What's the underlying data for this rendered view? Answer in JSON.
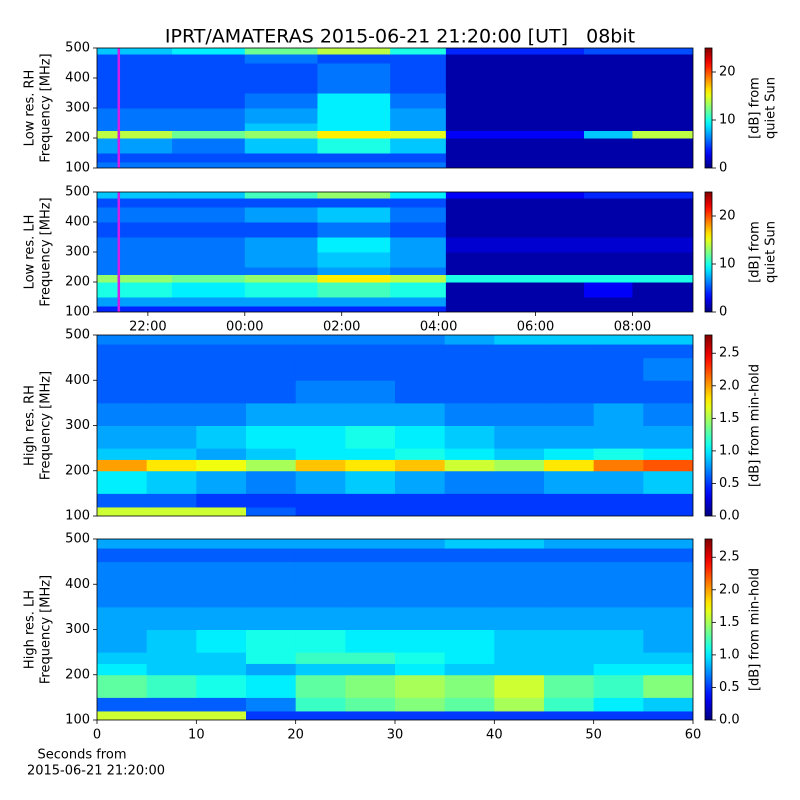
{
  "title": "IPRT/AMATERAS 2015-06-21 21:20:00 [UT]   08bit",
  "chart_data": [
    {
      "type": "heatmap",
      "ylabel": [
        "Low res. RH",
        "Frequency [MHz]"
      ],
      "clabel": [
        "[dB] from",
        "quiet Sun"
      ],
      "colormap": "jet",
      "xlim": [
        20.95,
        33.25
      ],
      "ylim": [
        100,
        500
      ],
      "yticks": [
        100,
        200,
        300,
        400,
        500
      ],
      "clim": [
        0,
        25
      ],
      "cticks": [
        0,
        10,
        20
      ],
      "marker_x": 21.4,
      "marker_color": "#d21ee6",
      "xbins": [
        20.95,
        22.5,
        24,
        25.5,
        27,
        28.15,
        29.5,
        31,
        32,
        33.25
      ],
      "ybins": [
        100,
        120,
        150,
        200,
        225,
        250,
        300,
        350,
        400,
        450,
        480,
        500
      ],
      "z": [
        [
          6,
          6,
          6,
          6,
          6,
          1,
          1,
          1,
          1
        ],
        [
          5,
          5,
          5,
          5,
          5,
          1,
          1,
          1,
          1
        ],
        [
          7,
          6,
          8,
          10,
          8,
          1,
          1,
          1,
          1
        ],
        [
          14,
          12,
          13,
          16,
          15,
          3,
          3,
          8,
          14
        ],
        [
          6,
          6,
          8,
          9,
          7,
          1,
          1,
          1,
          1
        ],
        [
          6,
          6,
          7,
          9,
          7,
          1,
          1,
          1,
          1
        ],
        [
          5,
          5,
          6,
          9,
          6,
          1,
          1,
          1,
          1
        ],
        [
          5,
          5,
          5,
          6,
          5,
          1,
          1,
          1,
          1
        ],
        [
          5,
          5,
          5,
          6,
          5,
          1,
          1,
          1,
          1
        ],
        [
          5,
          5,
          6,
          5,
          5,
          1,
          1,
          1,
          1
        ],
        [
          8,
          9,
          12,
          14,
          10,
          4,
          4,
          5,
          5
        ]
      ]
    },
    {
      "type": "heatmap",
      "ylabel": [
        "Low res. LH",
        "Frequency [MHz]"
      ],
      "clabel": [
        "[dB] from",
        "quiet Sun"
      ],
      "colormap": "jet",
      "xlim": [
        20.95,
        33.25
      ],
      "xticks": [
        {
          "value": 22,
          "label": "22:00"
        },
        {
          "value": 24,
          "label": "00:00"
        },
        {
          "value": 26,
          "label": "02:00"
        },
        {
          "value": 28,
          "label": "04:00"
        },
        {
          "value": 30,
          "label": "06:00"
        },
        {
          "value": 32,
          "label": "08:00"
        }
      ],
      "ylim": [
        100,
        500
      ],
      "yticks": [
        100,
        200,
        300,
        400,
        500
      ],
      "clim": [
        0,
        25
      ],
      "cticks": [
        0,
        10,
        20
      ],
      "marker_x": 21.4,
      "marker_color": "#d21ee6",
      "xbins": [
        20.95,
        22.5,
        24,
        25.5,
        27,
        28.15,
        29.5,
        31,
        32,
        33.25
      ],
      "ybins": [
        100,
        120,
        150,
        200,
        225,
        250,
        300,
        350,
        400,
        450,
        480,
        500
      ],
      "z": [
        [
          4,
          4,
          4,
          4,
          4,
          1,
          1,
          1,
          1
        ],
        [
          7,
          7,
          7,
          7,
          7,
          1,
          1,
          1,
          1
        ],
        [
          10,
          9,
          10,
          11,
          10,
          1,
          1,
          3,
          1
        ],
        [
          13,
          12,
          13,
          16,
          14,
          10,
          10,
          10,
          10
        ],
        [
          6,
          6,
          6,
          7,
          6,
          1,
          1,
          1,
          1
        ],
        [
          6,
          6,
          7,
          8,
          7,
          1,
          1,
          1,
          1
        ],
        [
          6,
          6,
          7,
          9,
          7,
          2,
          2,
          2,
          2
        ],
        [
          5,
          5,
          5,
          6,
          5,
          1,
          1,
          1,
          1
        ],
        [
          6,
          6,
          7,
          8,
          6,
          1,
          1,
          1,
          1
        ],
        [
          5,
          5,
          5,
          5,
          5,
          1,
          1,
          1,
          1
        ],
        [
          8,
          8,
          11,
          13,
          9,
          3,
          3,
          4,
          4
        ]
      ]
    },
    {
      "type": "heatmap",
      "ylabel": [
        "High res. RH",
        "Frequency [MHz]"
      ],
      "clabel": [
        "[dB] from min-hold"
      ],
      "colormap": "jet",
      "xlim": [
        0,
        60
      ],
      "ylim": [
        100,
        500
      ],
      "yticks": [
        100,
        200,
        300,
        400,
        500
      ],
      "clim": [
        0,
        2.78
      ],
      "cticks": [
        {
          "value": 0,
          "label": "0.0"
        },
        {
          "value": 0.5,
          "label": "0.5"
        },
        {
          "value": 1,
          "label": "1.0"
        },
        {
          "value": 1.5,
          "label": "1.5"
        },
        {
          "value": 2,
          "label": "2.0"
        },
        {
          "value": 2.5,
          "label": "2.5"
        }
      ],
      "xbins": [
        0,
        5,
        10,
        15,
        20,
        25,
        30,
        35,
        40,
        45,
        50,
        55,
        60
      ],
      "ybins": [
        100,
        120,
        150,
        200,
        225,
        250,
        300,
        350,
        400,
        450,
        480,
        500
      ],
      "z": [
        [
          1.6,
          1.6,
          1.6,
          0.6,
          0.5,
          0.5,
          0.5,
          0.5,
          0.5,
          0.5,
          0.5,
          0.5
        ],
        [
          0.6,
          0.6,
          0.5,
          0.5,
          0.5,
          0.5,
          0.5,
          0.5,
          0.5,
          0.5,
          0.5,
          0.5
        ],
        [
          1.0,
          0.9,
          0.8,
          0.7,
          0.8,
          0.9,
          0.8,
          0.7,
          0.7,
          0.8,
          0.8,
          0.9
        ],
        [
          2.0,
          1.8,
          1.7,
          1.5,
          1.9,
          1.8,
          1.9,
          1.6,
          1.5,
          1.8,
          2.1,
          2.2
        ],
        [
          0.9,
          0.9,
          0.8,
          0.9,
          1.0,
          1.0,
          1.1,
          1.0,
          0.9,
          1.0,
          1.1,
          1.0
        ],
        [
          0.8,
          0.8,
          0.9,
          1.0,
          1.0,
          1.1,
          1.0,
          0.9,
          0.8,
          0.8,
          0.8,
          0.8
        ],
        [
          0.7,
          0.7,
          0.7,
          0.8,
          0.8,
          0.8,
          0.8,
          0.7,
          0.7,
          0.7,
          0.8,
          0.7
        ],
        [
          0.6,
          0.6,
          0.6,
          0.6,
          0.7,
          0.7,
          0.6,
          0.6,
          0.6,
          0.6,
          0.6,
          0.6
        ],
        [
          0.6,
          0.6,
          0.6,
          0.6,
          0.6,
          0.6,
          0.6,
          0.6,
          0.6,
          0.6,
          0.6,
          0.7
        ],
        [
          0.6,
          0.6,
          0.6,
          0.6,
          0.6,
          0.6,
          0.6,
          0.6,
          0.6,
          0.6,
          0.6,
          0.6
        ],
        [
          0.7,
          0.7,
          0.7,
          0.7,
          0.7,
          0.7,
          0.7,
          0.8,
          0.9,
          0.9,
          0.9,
          0.9
        ]
      ]
    },
    {
      "type": "heatmap",
      "ylabel": [
        "High res. LH",
        "Frequency [MHz]"
      ],
      "clabel": [
        "[dB] from min-hold"
      ],
      "colormap": "jet",
      "xlabel": [
        "Seconds from",
        "2015-06-21 21:20:00"
      ],
      "xlim": [
        0,
        60
      ],
      "xticks": [
        0,
        10,
        20,
        30,
        40,
        50,
        60
      ],
      "ylim": [
        100,
        500
      ],
      "yticks": [
        100,
        200,
        300,
        400,
        500
      ],
      "clim": [
        0,
        2.78
      ],
      "cticks": [
        {
          "value": 0,
          "label": "0.0"
        },
        {
          "value": 0.5,
          "label": "0.5"
        },
        {
          "value": 1,
          "label": "1.0"
        },
        {
          "value": 1.5,
          "label": "1.5"
        },
        {
          "value": 2,
          "label": "2.0"
        },
        {
          "value": 2.5,
          "label": "2.5"
        }
      ],
      "xbins": [
        0,
        5,
        10,
        15,
        20,
        25,
        30,
        35,
        40,
        45,
        50,
        55,
        60
      ],
      "ybins": [
        100,
        120,
        150,
        200,
        225,
        250,
        300,
        350,
        400,
        450,
        480,
        500
      ],
      "z": [
        [
          1.6,
          1.6,
          1.6,
          0.5,
          0.5,
          0.5,
          0.5,
          0.5,
          0.5,
          0.5,
          0.5,
          0.5
        ],
        [
          0.6,
          0.6,
          0.6,
          0.7,
          1.2,
          1.3,
          1.4,
          1.3,
          1.5,
          1.2,
          1.0,
          0.9
        ],
        [
          1.3,
          1.2,
          1.1,
          1.0,
          1.3,
          1.4,
          1.5,
          1.4,
          1.6,
          1.3,
          1.2,
          1.4
        ],
        [
          1.0,
          0.9,
          0.9,
          0.8,
          0.9,
          0.9,
          1.0,
          0.9,
          0.9,
          0.9,
          1.0,
          1.0
        ],
        [
          0.9,
          0.9,
          0.9,
          1.1,
          1.2,
          1.2,
          1.1,
          1.0,
          0.9,
          0.9,
          0.9,
          0.9
        ],
        [
          0.8,
          0.9,
          1.0,
          1.1,
          1.1,
          1.0,
          1.0,
          1.0,
          0.9,
          0.9,
          0.9,
          0.8
        ],
        [
          0.8,
          0.8,
          0.8,
          0.8,
          0.8,
          0.8,
          0.8,
          0.8,
          0.8,
          0.8,
          0.8,
          0.8
        ],
        [
          0.7,
          0.7,
          0.7,
          0.7,
          0.7,
          0.7,
          0.7,
          0.7,
          0.7,
          0.7,
          0.7,
          0.7
        ],
        [
          0.7,
          0.7,
          0.7,
          0.7,
          0.7,
          0.7,
          0.7,
          0.7,
          0.7,
          0.7,
          0.7,
          0.7
        ],
        [
          0.6,
          0.6,
          0.6,
          0.6,
          0.6,
          0.6,
          0.6,
          0.6,
          0.6,
          0.6,
          0.6,
          0.6
        ],
        [
          0.8,
          0.8,
          0.8,
          0.8,
          0.8,
          0.8,
          0.8,
          0.9,
          0.9,
          0.8,
          0.8,
          0.8
        ]
      ]
    }
  ]
}
